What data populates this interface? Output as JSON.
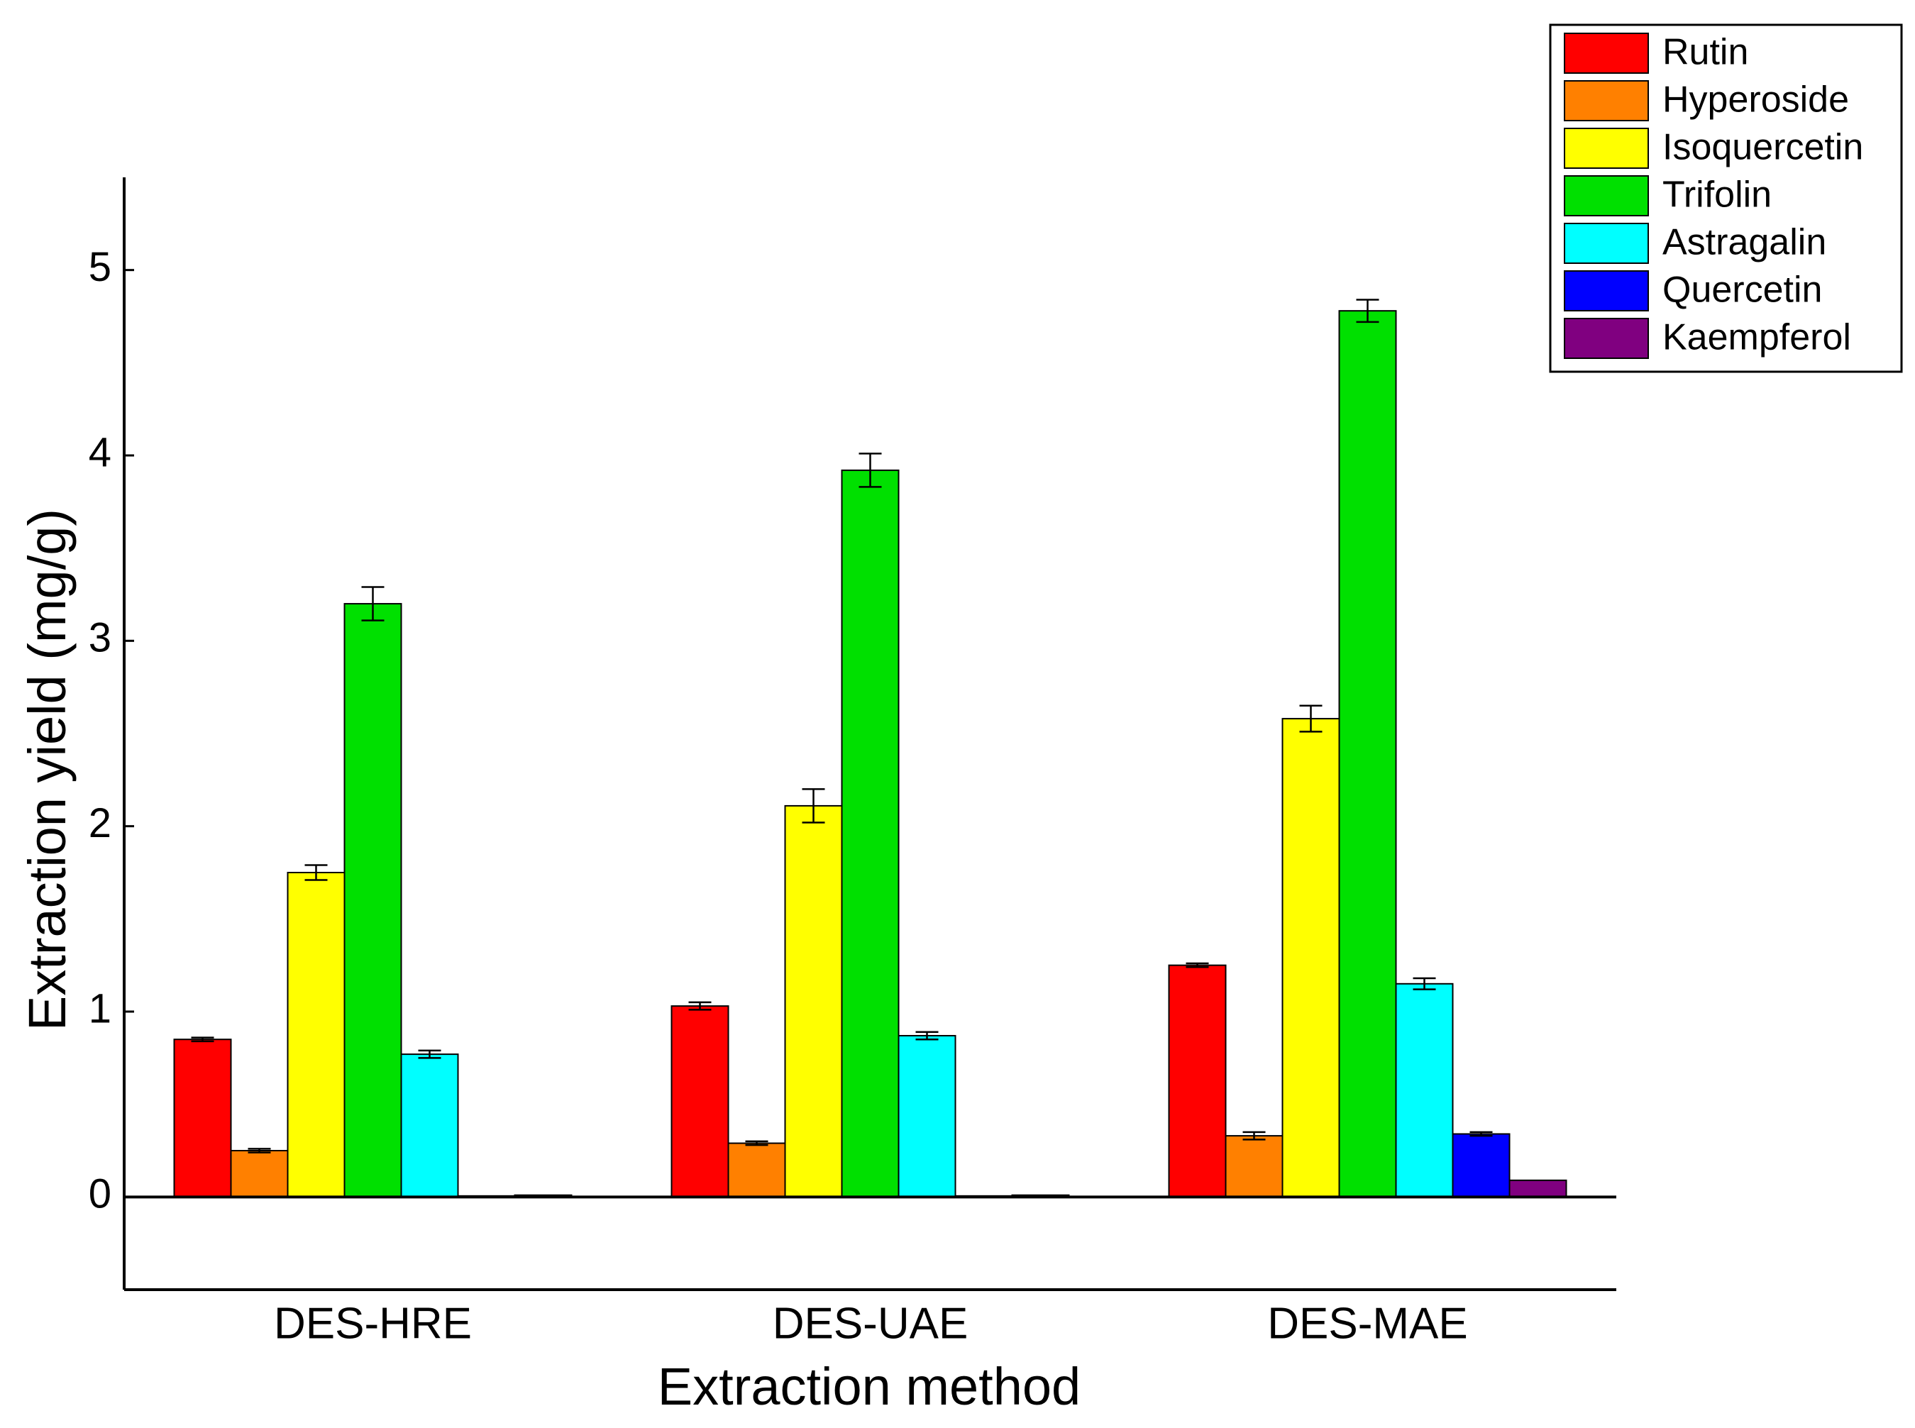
{
  "chart_data": {
    "type": "bar",
    "title": "",
    "xlabel": "Extraction method",
    "ylabel": "Extraction yield (mg/g)",
    "categories": [
      "DES-HRE",
      "DES-UAE",
      "DES-MAE"
    ],
    "ylim": [
      -0.5,
      5.5
    ],
    "yticks": [
      0,
      1,
      2,
      3,
      4,
      5
    ],
    "ytick_labels": [
      "0",
      "1",
      "2",
      "3",
      "4",
      "5"
    ],
    "legend_position": "top-right",
    "grid": false,
    "series": [
      {
        "name": "Rutin",
        "color": "#ff0000",
        "values": [
          0.85,
          1.03,
          1.25
        ],
        "errors": [
          0.01,
          0.02,
          0.01
        ]
      },
      {
        "name": "Hyperoside",
        "color": "#ff8000",
        "values": [
          0.25,
          0.29,
          0.33
        ],
        "errors": [
          0.01,
          0.01,
          0.02
        ]
      },
      {
        "name": "Isoquercetin",
        "color": "#ffff00",
        "values": [
          1.75,
          2.11,
          2.58
        ],
        "errors": [
          0.04,
          0.09,
          0.07
        ]
      },
      {
        "name": "Trifolin",
        "color": "#00e000",
        "values": [
          3.2,
          3.92,
          4.78
        ],
        "errors": [
          0.09,
          0.09,
          0.06
        ]
      },
      {
        "name": "Astragalin",
        "color": "#00ffff",
        "values": [
          0.77,
          0.87,
          1.15
        ],
        "errors": [
          0.02,
          0.02,
          0.03
        ]
      },
      {
        "name": "Quercetin",
        "color": "#0000ff",
        "values": [
          0.0,
          0.0,
          0.34
        ],
        "errors": [
          0.0,
          0.0,
          0.01
        ]
      },
      {
        "name": "Kaempferol",
        "color": "#800080",
        "values": [
          0.01,
          0.01,
          0.09
        ],
        "errors": [
          0.0,
          0.0,
          0.0
        ]
      }
    ]
  }
}
